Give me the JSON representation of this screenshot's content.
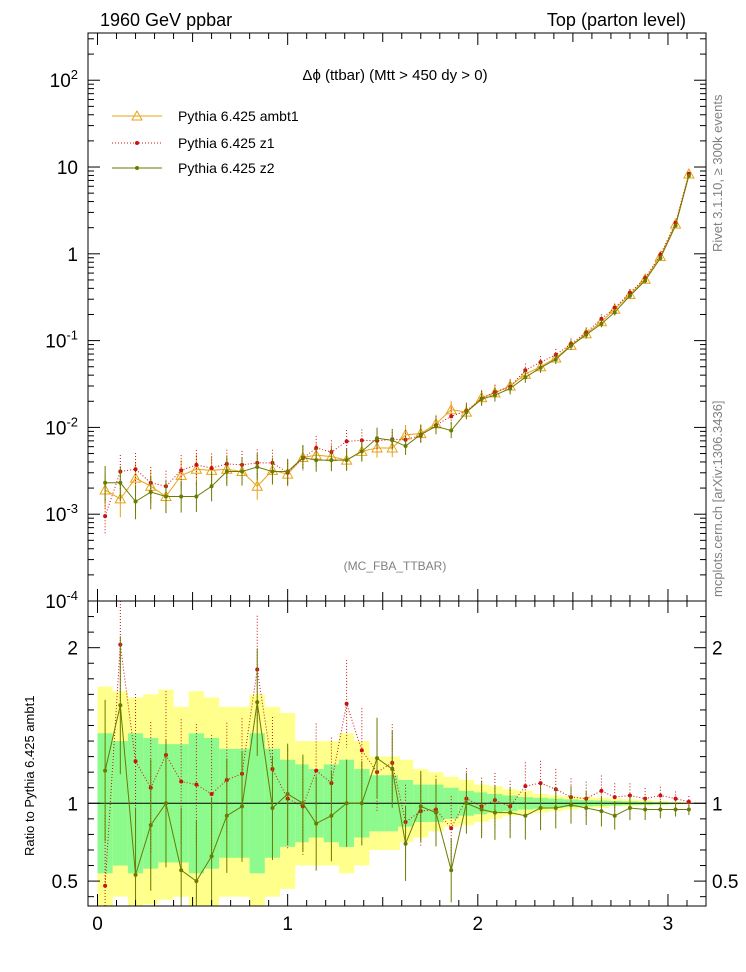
{
  "header": {
    "left": "1960 GeV ppbar",
    "right": "Top (parton level)"
  },
  "side_labels": {
    "rivet": "Rivet 3.1.10, ≥ 300k events",
    "source": "mcplots.cern.ch [arXiv:1306.3436]"
  },
  "colors": {
    "ambt1": "#e8a317",
    "z1": "#cc1010",
    "z2": "#6b7a00",
    "band_yellow": "#ffff8c",
    "band_green": "#8cfa8c"
  },
  "chart_data": [
    {
      "type": "line",
      "title": "Δϕ (ttbar) (Mtt > 450 dy > 0)",
      "analysis": "(MC_FBA_TTBAR)",
      "yscale": "log",
      "xlim": [
        -0.05,
        3.2
      ],
      "ylim": [
        0.0001,
        350
      ],
      "y_ticks": [
        "10^-4",
        "10^-3",
        "10^-2",
        "10^-1",
        "1",
        "10",
        "10^2"
      ],
      "legend_placement": "top-left",
      "x": [
        0.04,
        0.12,
        0.2,
        0.28,
        0.36,
        0.44,
        0.52,
        0.6,
        0.68,
        0.76,
        0.84,
        0.92,
        1.0,
        1.08,
        1.15,
        1.23,
        1.31,
        1.39,
        1.47,
        1.55,
        1.62,
        1.7,
        1.78,
        1.86,
        1.94,
        2.02,
        2.09,
        2.17,
        2.25,
        2.33,
        2.41,
        2.49,
        2.57,
        2.65,
        2.72,
        2.8,
        2.88,
        2.96,
        3.04,
        3.11
      ],
      "series": [
        {
          "name": "Pythia 6.425 ambt1",
          "marker": "triangle",
          "values": [
            0.0019,
            0.0015,
            0.0026,
            0.0021,
            0.0016,
            0.0028,
            0.0033,
            0.0032,
            0.0033,
            0.0031,
            0.0021,
            0.0032,
            0.0029,
            0.0045,
            0.0048,
            0.0046,
            0.0042,
            0.0053,
            0.0058,
            0.0058,
            0.0082,
            0.0085,
            0.011,
            0.016,
            0.015,
            0.022,
            0.025,
            0.03,
            0.041,
            0.05,
            0.063,
            0.088,
            0.12,
            0.165,
            0.23,
            0.34,
            0.51,
            0.93,
            2.2,
            8.3
          ]
        },
        {
          "name": "Pythia 6.425 z1",
          "marker": "dot",
          "values": [
            0.00095,
            0.0031,
            0.0033,
            0.0023,
            0.0021,
            0.0032,
            0.0037,
            0.0034,
            0.0038,
            0.0037,
            0.0039,
            0.0039,
            0.003,
            0.0044,
            0.0058,
            0.0052,
            0.0069,
            0.0071,
            0.007,
            0.0073,
            0.0072,
            0.0081,
            0.0106,
            0.0134,
            0.0155,
            0.0215,
            0.0255,
            0.0295,
            0.0455,
            0.0565,
            0.0685,
            0.0915,
            0.124,
            0.178,
            0.239,
            0.356,
            0.525,
            0.974,
            2.27,
            8.36
          ]
        },
        {
          "name": "Pythia 6.425 z2",
          "marker": "dot",
          "values": [
            0.0023,
            0.0023,
            0.0014,
            0.0018,
            0.0016,
            0.0016,
            0.0016,
            0.0021,
            0.0031,
            0.0031,
            0.0035,
            0.0031,
            0.0031,
            0.0045,
            0.0042,
            0.0042,
            0.0042,
            0.0053,
            0.0075,
            0.0071,
            0.0061,
            0.0083,
            0.0103,
            0.0092,
            0.015,
            0.0212,
            0.0235,
            0.0281,
            0.0378,
            0.0486,
            0.0608,
            0.0871,
            0.1168,
            0.1563,
            0.2118,
            0.3289,
            0.4896,
            0.8919,
            2.112,
            7.935
          ]
        }
      ]
    },
    {
      "type": "line",
      "ylabel": "Ratio to Pythia 6.425 ambt1",
      "xlim": [
        -0.05,
        3.2
      ],
      "ylim": [
        0.34,
        2.3
      ],
      "x_ticks": [
        0,
        1,
        2,
        3
      ],
      "y_ticks": [
        0.5,
        1,
        2
      ],
      "x": [
        0.04,
        0.12,
        0.2,
        0.28,
        0.36,
        0.44,
        0.52,
        0.6,
        0.68,
        0.76,
        0.84,
        0.92,
        1.0,
        1.08,
        1.15,
        1.23,
        1.31,
        1.39,
        1.47,
        1.55,
        1.62,
        1.7,
        1.78,
        1.86,
        1.94,
        2.02,
        2.09,
        2.17,
        2.25,
        2.33,
        2.41,
        2.49,
        2.57,
        2.65,
        2.72,
        2.8,
        2.88,
        2.96,
        3.04,
        3.11
      ],
      "bands": {
        "yellow_lower": [
          0.3,
          0.4,
          0.3,
          0.35,
          0.38,
          0.4,
          0.33,
          0.3,
          0.4,
          0.4,
          0.3,
          0.4,
          0.45,
          0.6,
          0.6,
          0.6,
          0.55,
          0.6,
          0.7,
          0.7,
          0.75,
          0.78,
          0.82,
          0.85,
          0.86,
          0.88,
          0.9,
          0.92,
          0.93,
          0.94,
          0.95,
          0.96,
          0.97,
          0.97,
          0.98,
          0.98,
          0.985,
          0.99,
          0.993,
          0.996
        ],
        "yellow_upper": [
          1.75,
          1.72,
          1.68,
          1.7,
          1.73,
          1.62,
          1.72,
          1.68,
          1.62,
          1.62,
          1.7,
          1.62,
          1.58,
          1.4,
          1.4,
          1.4,
          1.45,
          1.4,
          1.3,
          1.3,
          1.28,
          1.22,
          1.2,
          1.17,
          1.15,
          1.12,
          1.11,
          1.09,
          1.08,
          1.06,
          1.05,
          1.045,
          1.04,
          1.035,
          1.03,
          1.025,
          1.02,
          1.015,
          1.01,
          1.006
        ],
        "green_lower": [
          0.55,
          0.6,
          0.55,
          0.58,
          0.62,
          0.62,
          0.55,
          0.58,
          0.65,
          0.65,
          0.55,
          0.65,
          0.72,
          0.75,
          0.78,
          0.75,
          0.72,
          0.78,
          0.82,
          0.82,
          0.85,
          0.88,
          0.88,
          0.9,
          0.92,
          0.93,
          0.94,
          0.95,
          0.96,
          0.965,
          0.97,
          0.975,
          0.98,
          0.982,
          0.985,
          0.988,
          0.99,
          0.993,
          0.995,
          0.998
        ],
        "green_upper": [
          1.45,
          1.4,
          1.45,
          1.42,
          1.38,
          1.38,
          1.45,
          1.42,
          1.35,
          1.35,
          1.45,
          1.35,
          1.28,
          1.25,
          1.22,
          1.25,
          1.28,
          1.22,
          1.18,
          1.18,
          1.15,
          1.12,
          1.12,
          1.1,
          1.08,
          1.07,
          1.06,
          1.05,
          1.04,
          1.035,
          1.03,
          1.025,
          1.02,
          1.018,
          1.015,
          1.012,
          1.01,
          1.007,
          1.005,
          1.002
        ]
      },
      "series": [
        {
          "name": "Pythia 6.425 z1",
          "values": [
            0.47,
            2.02,
            1.27,
            1.1,
            1.31,
            1.14,
            1.12,
            1.06,
            1.15,
            1.19,
            1.86,
            1.22,
            1.03,
            0.98,
            1.21,
            1.13,
            1.64,
            1.34,
            1.2,
            1.26,
            0.88,
            0.95,
            0.96,
            0.84,
            1.03,
            0.98,
            1.02,
            0.98,
            1.11,
            1.13,
            1.09,
            1.04,
            1.03,
            1.08,
            1.04,
            1.05,
            1.03,
            1.05,
            1.03,
            1.01
          ]
        },
        {
          "name": "Pythia 6.425 z2",
          "values": [
            1.21,
            1.63,
            0.54,
            0.86,
            1.0,
            0.57,
            0.5,
            0.66,
            0.92,
            0.98,
            1.65,
            0.97,
            1.06,
            1.0,
            0.87,
            0.92,
            1.0,
            1.0,
            1.29,
            1.22,
            0.74,
            0.98,
            0.94,
            0.57,
            1.0,
            0.96,
            0.94,
            0.94,
            0.92,
            0.97,
            0.97,
            0.99,
            0.97,
            0.95,
            0.92,
            0.97,
            0.96,
            0.96,
            0.96,
            0.96
          ]
        }
      ]
    }
  ]
}
